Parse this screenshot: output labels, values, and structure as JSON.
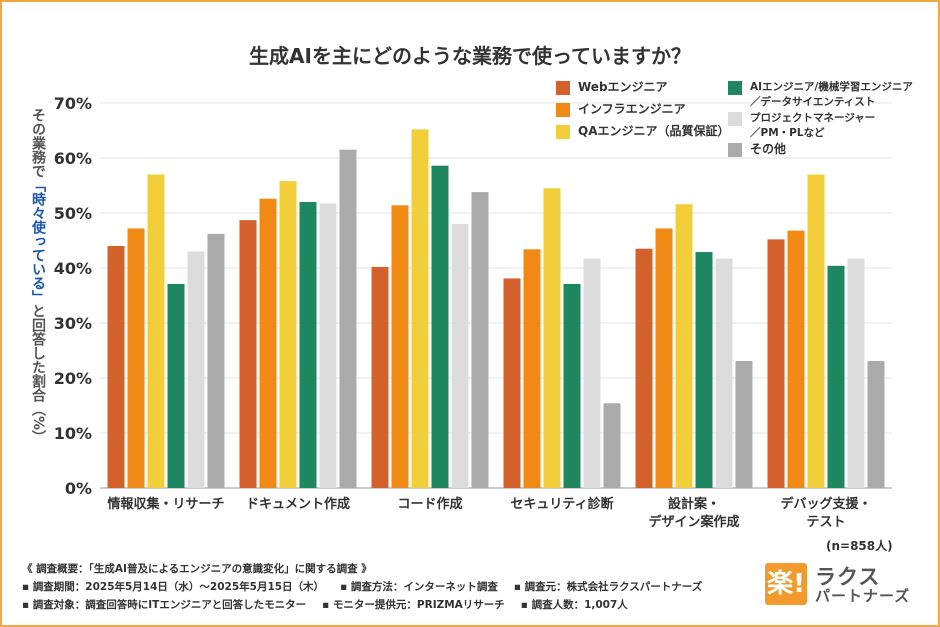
{
  "chart_data": {
    "type": "bar",
    "title": "生成AIを主にどのような業務で使っていますか？",
    "ylabel_parts": [
      "その業務で",
      "「時々使っている」",
      "と回答した割合（%）"
    ],
    "ylim": [
      0,
      70
    ],
    "yticks": [
      "0%",
      "10%",
      "20%",
      "30%",
      "40%",
      "50%",
      "60%",
      "70%"
    ],
    "grid": true,
    "legend_position": "top-right",
    "categories": [
      "情報収集・リサーチ",
      "ドキュメント作成",
      "コード作成",
      "セキュリティ診断",
      "設計案・\nデザイン案作成",
      "デバッグ支援・\nテスト"
    ],
    "series": [
      {
        "name": "Webエンジニア",
        "color": "#d4612c",
        "values": [
          44.0,
          48.7,
          40.2,
          38.1,
          43.5,
          45.2
        ]
      },
      {
        "name": "インフラエンジニア",
        "color": "#f08a14",
        "values": [
          47.2,
          52.6,
          51.4,
          43.4,
          47.2,
          46.8
        ]
      },
      {
        "name": "QAエンジニア（品質保証）",
        "color": "#f2cf3a",
        "values": [
          57.0,
          55.8,
          65.2,
          54.5,
          51.6,
          57.0
        ]
      },
      {
        "name": "AIエンジニア/機械学習エンジニア\n／データサイエンティスト",
        "color": "#1e8760",
        "values": [
          37.1,
          52.0,
          58.6,
          37.1,
          42.9,
          40.4
        ]
      },
      {
        "name": "プロジェクトマネージャー\n／PM・PLなど",
        "color": "#dcdcdc",
        "values": [
          43.0,
          51.7,
          48.0,
          41.7,
          41.7,
          41.7
        ]
      },
      {
        "name": "その他",
        "color": "#aaaaaa",
        "values": [
          46.2,
          61.5,
          53.8,
          15.4,
          23.1,
          23.1
        ]
      }
    ]
  },
  "sample_note": "(n=858人)",
  "notes": {
    "heading": "《 調査概要：「生成AI普及によるエンジニアの意識変化」に関する調査 》",
    "row1": [
      "▪ 調査期間：2025年5月14日（水）〜2025年5月15日（木）",
      "▪ 調査方法：インターネット調査",
      "▪ 調査元：株式会社ラクスパートナーズ"
    ],
    "row2": [
      "▪ 調査対象：調査回答時にITエンジニアと回答したモニター",
      "▪ モニター提供元：PRIZMAリサーチ",
      "▪ 調査人数：1,007人"
    ]
  },
  "logo": {
    "mark": "楽!",
    "line1": "ラクス",
    "line2": "パートナーズ"
  }
}
